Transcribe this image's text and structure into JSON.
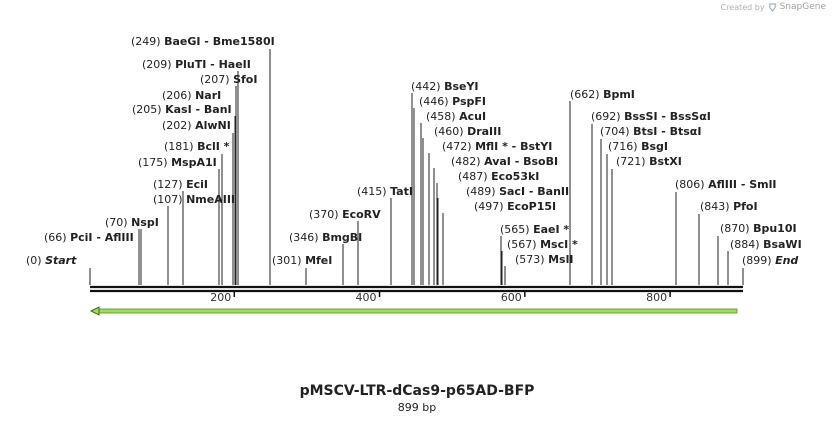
{
  "watermark": {
    "created_by": "Created by",
    "brand": "SnapGene"
  },
  "map": {
    "name": "pMSCV-LTR-dCas9-p65AD-BFP",
    "length_label": "899 bp",
    "length": 899,
    "ticks": [
      "200",
      "400",
      "600",
      "800"
    ],
    "feature_color": "#9ee055"
  },
  "sites": [
    {
      "pos": "(0)",
      "name": "Start",
      "italic": true
    },
    {
      "pos": "(66)",
      "name": "PciI  - AflIII"
    },
    {
      "pos": "(70)",
      "name": "NspI"
    },
    {
      "pos": "(107)",
      "name": "NmeAIII"
    },
    {
      "pos": "(127)",
      "name": "EciI"
    },
    {
      "pos": "(175)",
      "name": "MspA1I"
    },
    {
      "pos": "(181)",
      "name": "BclI *"
    },
    {
      "pos": "(202)",
      "name": "AlwNI"
    },
    {
      "pos": "(205)",
      "name": "KasI  - BanI"
    },
    {
      "pos": "(206)",
      "name": "NarI"
    },
    {
      "pos": "(207)",
      "name": "SfoI"
    },
    {
      "pos": "(209)",
      "name": "PluTI  - HaeII"
    },
    {
      "pos": "(249)",
      "name": "BaeGI  - Bme1580I"
    },
    {
      "pos": "(301)",
      "name": "MfeI"
    },
    {
      "pos": "(346)",
      "name": "BmgBI"
    },
    {
      "pos": "(370)",
      "name": "EcoRV"
    },
    {
      "pos": "(415)",
      "name": "TatI"
    },
    {
      "pos": "(442)",
      "name": "BseYI"
    },
    {
      "pos": "(446)",
      "name": "PspFI"
    },
    {
      "pos": "(458)",
      "name": "AcuI"
    },
    {
      "pos": "(460)",
      "name": "DraIII"
    },
    {
      "pos": "(472)",
      "name": "MflI * - BstYI"
    },
    {
      "pos": "(482)",
      "name": "AvaI  - BsoBI"
    },
    {
      "pos": "(487)",
      "name": "Eco53kI"
    },
    {
      "pos": "(489)",
      "name": "SacI  - BanII"
    },
    {
      "pos": "(497)",
      "name": "EcoP15I"
    },
    {
      "pos": "(565)",
      "name": "EaeI *"
    },
    {
      "pos": "(567)",
      "name": "MscI *"
    },
    {
      "pos": "(573)",
      "name": "MslI"
    },
    {
      "pos": "(662)",
      "name": "BpmI"
    },
    {
      "pos": "(692)",
      "name": "BssSI  - BssSαI"
    },
    {
      "pos": "(704)",
      "name": "BtsI  - BtsαI"
    },
    {
      "pos": "(716)",
      "name": "BsgI"
    },
    {
      "pos": "(721)",
      "name": "BstXI"
    },
    {
      "pos": "(806)",
      "name": "AflIII  - SmlI"
    },
    {
      "pos": "(843)",
      "name": "PfoI"
    },
    {
      "pos": "(870)",
      "name": "Bpu10I"
    },
    {
      "pos": "(884)",
      "name": "BsaWI"
    },
    {
      "pos": "(899)",
      "name": "End",
      "italic": true
    }
  ]
}
